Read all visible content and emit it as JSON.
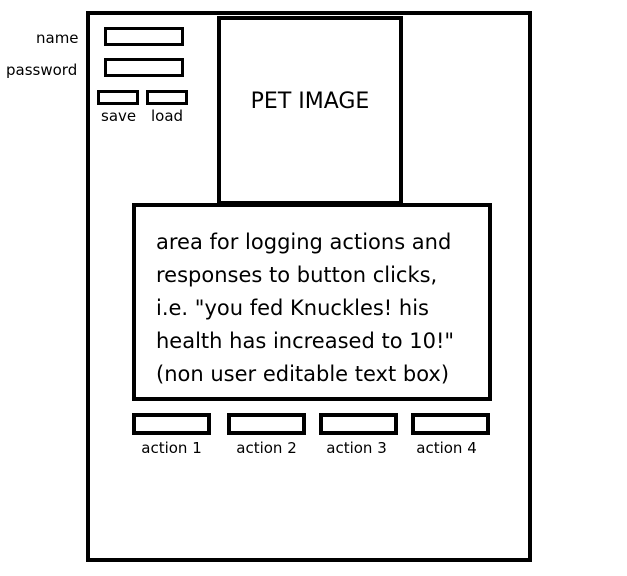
{
  "login": {
    "name_label": "name",
    "name_value": "",
    "password_label": "password",
    "password_value": "",
    "save_label": "save",
    "load_label": "load"
  },
  "pet_image": {
    "label": "PET IMAGE"
  },
  "log": {
    "text": "area for logging actions and\nresponses to button clicks,\ni.e. \"you fed Knuckles! his\nhealth has increased to 10!\"\n(non user editable text box)"
  },
  "actions": [
    {
      "label": "action 1"
    },
    {
      "label": "action 2"
    },
    {
      "label": "action 3"
    },
    {
      "label": "action 4"
    }
  ],
  "colors": {
    "border": "#000000",
    "background": "#ffffff"
  }
}
